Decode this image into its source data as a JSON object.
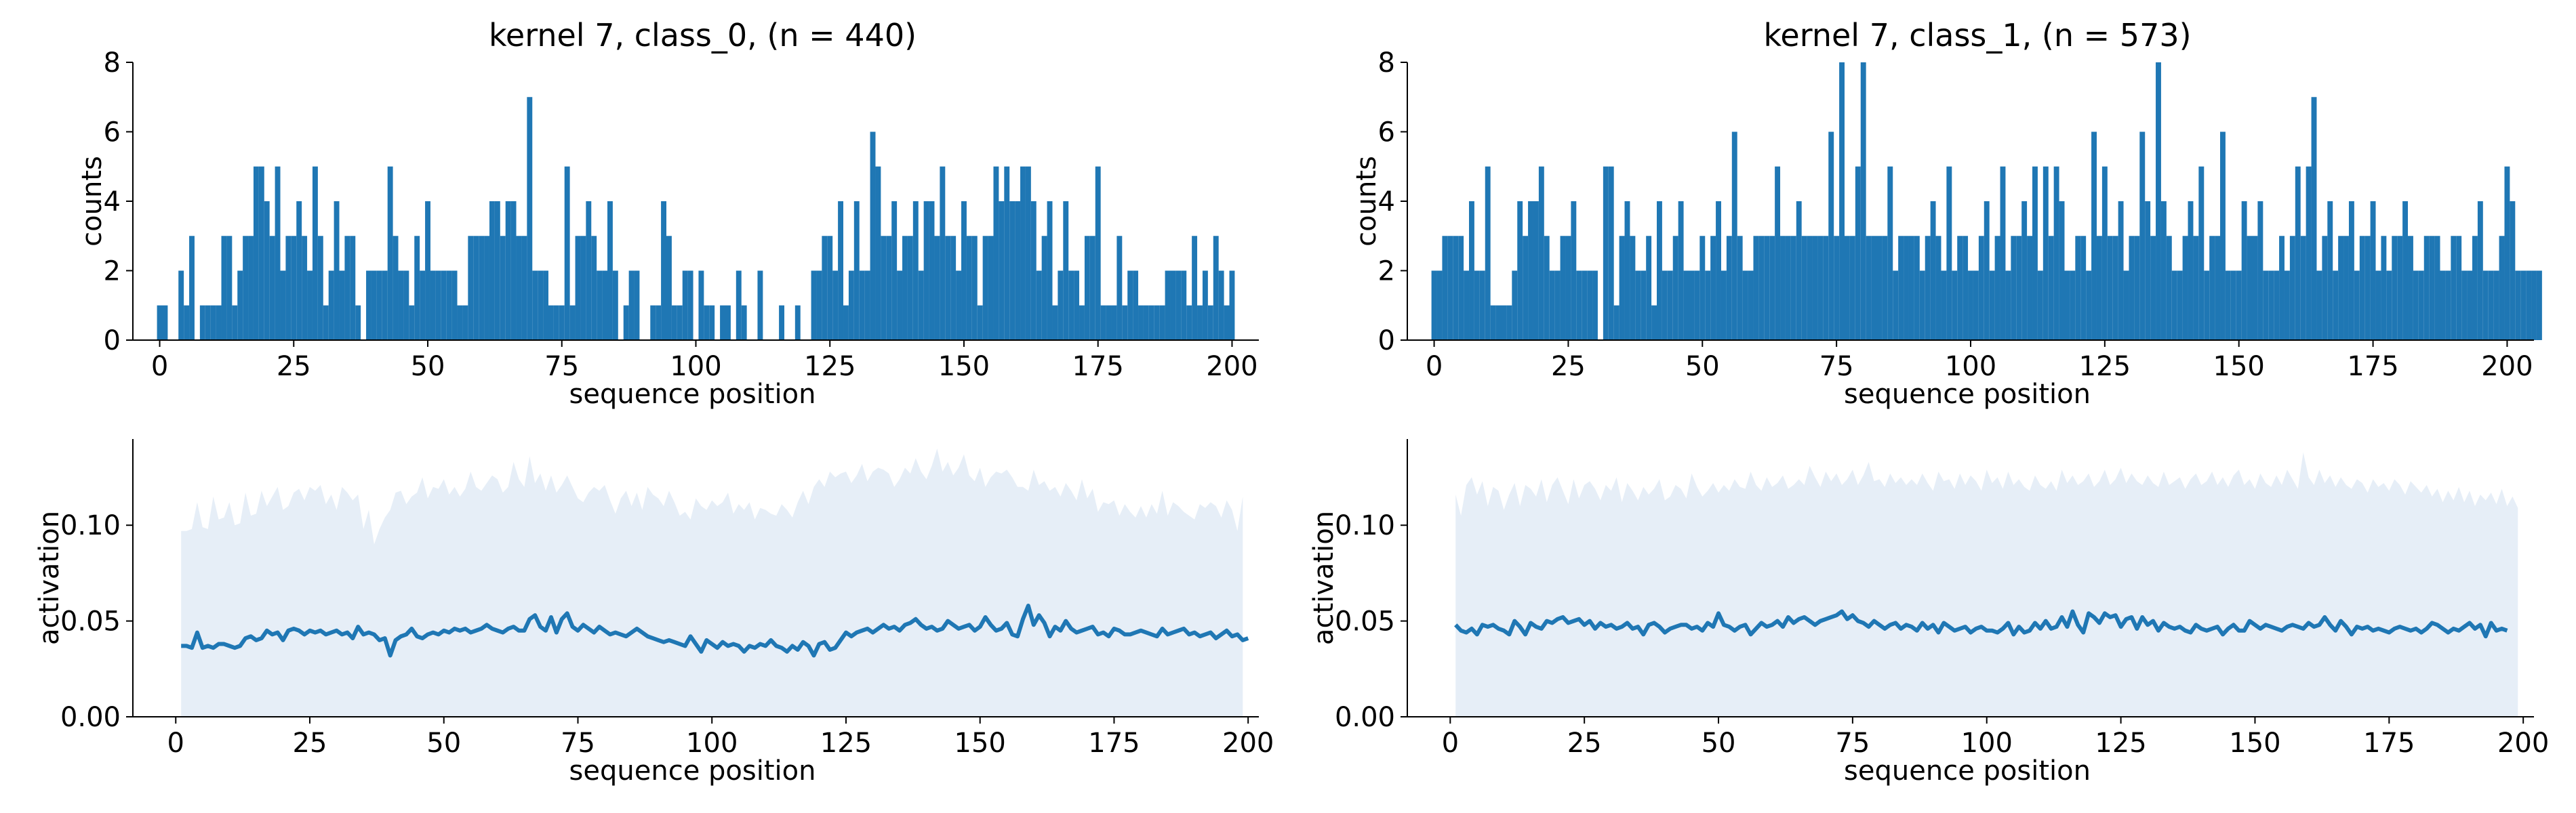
{
  "colors": {
    "bar": "#1f77b4",
    "line": "#1f77b4",
    "band": "#e6eef7",
    "axis": "#000000"
  },
  "chart_data": [
    {
      "type": "bar",
      "title": "kernel 7, class_0, (n = 440)",
      "xlabel": "sequence position",
      "ylabel": "counts",
      "xlim": [
        -5,
        205
      ],
      "ylim": [
        0,
        8
      ],
      "xticks": [
        0,
        25,
        50,
        75,
        100,
        125,
        150,
        175,
        200
      ],
      "yticks": [
        0,
        2,
        4,
        6,
        8
      ],
      "x_start": 0,
      "values": [
        1,
        1,
        0,
        0,
        2,
        1,
        3,
        0,
        1,
        1,
        1,
        1,
        3,
        3,
        1,
        2,
        3,
        3,
        5,
        5,
        4,
        3,
        5,
        2,
        3,
        3,
        4,
        3,
        2,
        5,
        3,
        1,
        2,
        4,
        2,
        3,
        3,
        1,
        0,
        2,
        2,
        2,
        2,
        5,
        3,
        2,
        2,
        1,
        3,
        2,
        4,
        2,
        2,
        2,
        2,
        2,
        1,
        1,
        3,
        3,
        3,
        3,
        4,
        4,
        3,
        4,
        4,
        3,
        3,
        7,
        2,
        2,
        2,
        1,
        1,
        1,
        5,
        1,
        3,
        3,
        4,
        3,
        2,
        2,
        4,
        2,
        0,
        1,
        2,
        2,
        0,
        0,
        1,
        1,
        4,
        3,
        1,
        1,
        2,
        2,
        0,
        2,
        1,
        1,
        0,
        1,
        1,
        0,
        2,
        1,
        0,
        0,
        2,
        0,
        0,
        0,
        1,
        0,
        0,
        1,
        0,
        0,
        2,
        2,
        3,
        3,
        2,
        4,
        1,
        2,
        4,
        2,
        2,
        6,
        5,
        3,
        3,
        4,
        2,
        3,
        3,
        4,
        2,
        4,
        4,
        3,
        5,
        3,
        3,
        2,
        4,
        3,
        3,
        1,
        3,
        3,
        5,
        4,
        5,
        4,
        4,
        5,
        5,
        4,
        2,
        3,
        4,
        1,
        2,
        4,
        2,
        2,
        1,
        3,
        3,
        5,
        1,
        1,
        1,
        3,
        1,
        2,
        2,
        1,
        1,
        1,
        1,
        1,
        2,
        2,
        2,
        2,
        1,
        3,
        1,
        2,
        1,
        3,
        2,
        1,
        2
      ]
    },
    {
      "type": "bar",
      "title": "kernel 7, class_1, (n = 573)",
      "xlabel": "sequence position",
      "ylabel": "counts",
      "xlim": [
        -5,
        205
      ],
      "ylim": [
        0,
        8
      ],
      "xticks": [
        0,
        25,
        50,
        75,
        100,
        125,
        150,
        175,
        200
      ],
      "yticks": [
        0,
        2,
        4,
        6,
        8
      ],
      "x_start": 0,
      "values": [
        2,
        2,
        3,
        3,
        3,
        3,
        2,
        4,
        2,
        2,
        5,
        1,
        1,
        1,
        1,
        2,
        4,
        3,
        4,
        4,
        5,
        3,
        2,
        2,
        3,
        3,
        4,
        2,
        2,
        2,
        2,
        0,
        5,
        5,
        1,
        3,
        4,
        3,
        2,
        2,
        3,
        1,
        4,
        2,
        2,
        3,
        4,
        2,
        2,
        2,
        3,
        2,
        3,
        4,
        2,
        3,
        6,
        3,
        2,
        2,
        3,
        3,
        3,
        3,
        5,
        3,
        3,
        3,
        4,
        3,
        3,
        3,
        3,
        3,
        6,
        3,
        8,
        3,
        3,
        5,
        8,
        3,
        3,
        3,
        3,
        5,
        2,
        3,
        3,
        3,
        3,
        2,
        3,
        4,
        3,
        2,
        5,
        2,
        3,
        3,
        2,
        2,
        3,
        4,
        2,
        3,
        5,
        2,
        3,
        3,
        4,
        3,
        5,
        2,
        5,
        3,
        5,
        4,
        2,
        2,
        3,
        3,
        2,
        6,
        3,
        5,
        3,
        3,
        4,
        2,
        3,
        3,
        6,
        4,
        3,
        8,
        4,
        3,
        2,
        2,
        3,
        4,
        3,
        5,
        2,
        3,
        3,
        6,
        2,
        2,
        2,
        4,
        3,
        3,
        4,
        2,
        2,
        2,
        3,
        2,
        3,
        5,
        3,
        5,
        7,
        2,
        3,
        4,
        2,
        3,
        3,
        4,
        2,
        3,
        3,
        4,
        2,
        3,
        2,
        3,
        3,
        4,
        3,
        2,
        2,
        3,
        3,
        3,
        2,
        2,
        3,
        3,
        2,
        2,
        3,
        4,
        2,
        2,
        2,
        3,
        5,
        4,
        2,
        2,
        2,
        2,
        2
      ]
    },
    {
      "type": "line",
      "xlabel": "sequence position",
      "ylabel": "activation",
      "xlim": [
        -8,
        202
      ],
      "ylim": [
        0,
        0.145
      ],
      "xticks": [
        0,
        25,
        50,
        75,
        100,
        125,
        150,
        175,
        200
      ],
      "xtick_labels": [
        "0",
        "25",
        "50",
        "75",
        "100",
        "125",
        "150",
        "175",
        "200"
      ],
      "yticks": [
        0,
        0.05,
        0.1
      ],
      "ytick_labels": [
        "0.00",
        "0.05",
        "0.10"
      ],
      "x_start": 1,
      "values": [
        0.037,
        0.037,
        0.036,
        0.044,
        0.036,
        0.037,
        0.036,
        0.038,
        0.038,
        0.037,
        0.036,
        0.037,
        0.041,
        0.042,
        0.04,
        0.041,
        0.045,
        0.043,
        0.044,
        0.04,
        0.045,
        0.046,
        0.045,
        0.043,
        0.045,
        0.044,
        0.045,
        0.043,
        0.044,
        0.045,
        0.043,
        0.044,
        0.041,
        0.047,
        0.043,
        0.044,
        0.043,
        0.04,
        0.041,
        0.032,
        0.04,
        0.042,
        0.043,
        0.046,
        0.042,
        0.041,
        0.043,
        0.044,
        0.043,
        0.045,
        0.044,
        0.046,
        0.045,
        0.046,
        0.044,
        0.045,
        0.046,
        0.048,
        0.046,
        0.045,
        0.044,
        0.046,
        0.047,
        0.045,
        0.045,
        0.051,
        0.053,
        0.047,
        0.045,
        0.052,
        0.044,
        0.051,
        0.054,
        0.047,
        0.045,
        0.048,
        0.046,
        0.044,
        0.047,
        0.045,
        0.043,
        0.044,
        0.043,
        0.042,
        0.044,
        0.046,
        0.044,
        0.042,
        0.041,
        0.04,
        0.039,
        0.04,
        0.039,
        0.038,
        0.037,
        0.042,
        0.038,
        0.034,
        0.04,
        0.038,
        0.036,
        0.039,
        0.037,
        0.038,
        0.037,
        0.034,
        0.037,
        0.036,
        0.038,
        0.037,
        0.04,
        0.037,
        0.036,
        0.034,
        0.037,
        0.035,
        0.039,
        0.037,
        0.032,
        0.038,
        0.039,
        0.035,
        0.036,
        0.04,
        0.044,
        0.042,
        0.044,
        0.045,
        0.046,
        0.044,
        0.046,
        0.048,
        0.046,
        0.047,
        0.045,
        0.048,
        0.049,
        0.051,
        0.048,
        0.046,
        0.047,
        0.045,
        0.046,
        0.05,
        0.048,
        0.046,
        0.047,
        0.048,
        0.045,
        0.047,
        0.052,
        0.048,
        0.045,
        0.046,
        0.049,
        0.043,
        0.042,
        0.051,
        0.058,
        0.048,
        0.053,
        0.049,
        0.042,
        0.047,
        0.045,
        0.05,
        0.046,
        0.044,
        0.045,
        0.046,
        0.047,
        0.043,
        0.044,
        0.042,
        0.046,
        0.045,
        0.043,
        0.043,
        0.044,
        0.045,
        0.044,
        0.043,
        0.042,
        0.046,
        0.043,
        0.044,
        0.045,
        0.046,
        0.043,
        0.044,
        0.042,
        0.043,
        0.044,
        0.041,
        0.043,
        0.045,
        0.042,
        0.043,
        0.04,
        0.041
      ],
      "band_upper": [
        0.097,
        0.097,
        0.098,
        0.112,
        0.099,
        0.098,
        0.115,
        0.103,
        0.104,
        0.112,
        0.1,
        0.101,
        0.117,
        0.105,
        0.106,
        0.118,
        0.11,
        0.115,
        0.12,
        0.108,
        0.11,
        0.117,
        0.119,
        0.113,
        0.12,
        0.118,
        0.121,
        0.111,
        0.116,
        0.108,
        0.12,
        0.117,
        0.113,
        0.116,
        0.098,
        0.108,
        0.09,
        0.098,
        0.104,
        0.108,
        0.117,
        0.118,
        0.111,
        0.115,
        0.117,
        0.125,
        0.114,
        0.12,
        0.119,
        0.124,
        0.116,
        0.12,
        0.115,
        0.119,
        0.128,
        0.12,
        0.118,
        0.122,
        0.126,
        0.124,
        0.117,
        0.12,
        0.133,
        0.124,
        0.12,
        0.136,
        0.122,
        0.127,
        0.118,
        0.126,
        0.117,
        0.121,
        0.126,
        0.12,
        0.114,
        0.112,
        0.117,
        0.12,
        0.118,
        0.121,
        0.113,
        0.106,
        0.114,
        0.118,
        0.11,
        0.117,
        0.108,
        0.12,
        0.116,
        0.114,
        0.11,
        0.118,
        0.112,
        0.105,
        0.107,
        0.103,
        0.114,
        0.11,
        0.108,
        0.113,
        0.11,
        0.112,
        0.117,
        0.106,
        0.111,
        0.108,
        0.112,
        0.103,
        0.109,
        0.108,
        0.106,
        0.105,
        0.111,
        0.108,
        0.104,
        0.112,
        0.118,
        0.111,
        0.12,
        0.124,
        0.12,
        0.128,
        0.125,
        0.127,
        0.128,
        0.122,
        0.126,
        0.132,
        0.123,
        0.128,
        0.13,
        0.129,
        0.127,
        0.12,
        0.124,
        0.13,
        0.127,
        0.135,
        0.128,
        0.124,
        0.131,
        0.14,
        0.128,
        0.133,
        0.126,
        0.13,
        0.137,
        0.126,
        0.123,
        0.13,
        0.12,
        0.125,
        0.128,
        0.127,
        0.129,
        0.125,
        0.12,
        0.12,
        0.118,
        0.129,
        0.121,
        0.123,
        0.118,
        0.12,
        0.115,
        0.122,
        0.118,
        0.113,
        0.124,
        0.114,
        0.119,
        0.107,
        0.112,
        0.111,
        0.113,
        0.105,
        0.111,
        0.107,
        0.104,
        0.11,
        0.104,
        0.111,
        0.106,
        0.118,
        0.105,
        0.112,
        0.11,
        0.107,
        0.105,
        0.103,
        0.111,
        0.109,
        0.112,
        0.11,
        0.104,
        0.113,
        0.108,
        0.097,
        0.115
      ]
    },
    {
      "type": "line",
      "xlabel": "sequence position",
      "ylabel": "activation",
      "xlim": [
        -8,
        202
      ],
      "ylim": [
        0,
        0.145
      ],
      "xticks": [
        0,
        25,
        50,
        75,
        100,
        125,
        150,
        175,
        200
      ],
      "xtick_labels": [
        "0",
        "25",
        "50",
        "75",
        "100",
        "125",
        "150",
        "175",
        "200"
      ],
      "yticks": [
        0,
        0.05,
        0.1
      ],
      "ytick_labels": [
        "0.00",
        "0.05",
        "0.10"
      ],
      "x_start": 1,
      "values": [
        0.048,
        0.045,
        0.044,
        0.046,
        0.043,
        0.048,
        0.047,
        0.048,
        0.046,
        0.045,
        0.043,
        0.05,
        0.047,
        0.043,
        0.049,
        0.047,
        0.046,
        0.05,
        0.049,
        0.051,
        0.052,
        0.049,
        0.05,
        0.051,
        0.048,
        0.05,
        0.046,
        0.049,
        0.047,
        0.048,
        0.046,
        0.047,
        0.049,
        0.046,
        0.047,
        0.043,
        0.048,
        0.049,
        0.047,
        0.044,
        0.046,
        0.047,
        0.048,
        0.048,
        0.046,
        0.047,
        0.045,
        0.049,
        0.047,
        0.054,
        0.048,
        0.047,
        0.045,
        0.047,
        0.048,
        0.043,
        0.046,
        0.049,
        0.047,
        0.048,
        0.05,
        0.047,
        0.052,
        0.049,
        0.051,
        0.052,
        0.05,
        0.048,
        0.05,
        0.051,
        0.052,
        0.053,
        0.055,
        0.051,
        0.053,
        0.05,
        0.049,
        0.047,
        0.05,
        0.048,
        0.046,
        0.048,
        0.049,
        0.046,
        0.048,
        0.047,
        0.045,
        0.049,
        0.046,
        0.048,
        0.044,
        0.049,
        0.047,
        0.045,
        0.046,
        0.047,
        0.044,
        0.046,
        0.047,
        0.045,
        0.045,
        0.044,
        0.046,
        0.049,
        0.043,
        0.047,
        0.044,
        0.045,
        0.049,
        0.046,
        0.05,
        0.046,
        0.047,
        0.052,
        0.047,
        0.055,
        0.048,
        0.044,
        0.054,
        0.052,
        0.049,
        0.054,
        0.052,
        0.053,
        0.047,
        0.051,
        0.052,
        0.046,
        0.052,
        0.048,
        0.05,
        0.045,
        0.049,
        0.047,
        0.046,
        0.047,
        0.045,
        0.044,
        0.048,
        0.046,
        0.045,
        0.046,
        0.047,
        0.043,
        0.046,
        0.048,
        0.045,
        0.045,
        0.05,
        0.048,
        0.046,
        0.048,
        0.047,
        0.046,
        0.045,
        0.047,
        0.048,
        0.047,
        0.046,
        0.049,
        0.047,
        0.048,
        0.052,
        0.048,
        0.045,
        0.05,
        0.047,
        0.043,
        0.047,
        0.046,
        0.047,
        0.045,
        0.046,
        0.045,
        0.044,
        0.046,
        0.047,
        0.046,
        0.045,
        0.046,
        0.044,
        0.046,
        0.049,
        0.048,
        0.046,
        0.044,
        0.046,
        0.045,
        0.047,
        0.049,
        0.046,
        0.048,
        0.042,
        0.049,
        0.045,
        0.046,
        0.045
      ],
      "band_upper": [
        0.116,
        0.105,
        0.121,
        0.125,
        0.116,
        0.123,
        0.11,
        0.12,
        0.118,
        0.108,
        0.116,
        0.122,
        0.11,
        0.121,
        0.119,
        0.115,
        0.124,
        0.112,
        0.121,
        0.125,
        0.118,
        0.111,
        0.124,
        0.114,
        0.121,
        0.123,
        0.119,
        0.113,
        0.121,
        0.118,
        0.125,
        0.112,
        0.122,
        0.118,
        0.113,
        0.12,
        0.116,
        0.119,
        0.124,
        0.113,
        0.115,
        0.121,
        0.119,
        0.114,
        0.127,
        0.12,
        0.115,
        0.118,
        0.122,
        0.117,
        0.121,
        0.118,
        0.124,
        0.12,
        0.119,
        0.128,
        0.121,
        0.118,
        0.125,
        0.12,
        0.122,
        0.126,
        0.119,
        0.121,
        0.124,
        0.121,
        0.131,
        0.125,
        0.12,
        0.128,
        0.123,
        0.127,
        0.121,
        0.124,
        0.129,
        0.121,
        0.126,
        0.133,
        0.123,
        0.124,
        0.12,
        0.127,
        0.122,
        0.125,
        0.121,
        0.124,
        0.121,
        0.127,
        0.122,
        0.118,
        0.128,
        0.123,
        0.124,
        0.119,
        0.127,
        0.121,
        0.126,
        0.123,
        0.118,
        0.129,
        0.122,
        0.125,
        0.119,
        0.128,
        0.121,
        0.124,
        0.12,
        0.118,
        0.126,
        0.121,
        0.119,
        0.123,
        0.118,
        0.129,
        0.122,
        0.126,
        0.121,
        0.123,
        0.127,
        0.12,
        0.123,
        0.129,
        0.121,
        0.124,
        0.13,
        0.122,
        0.127,
        0.123,
        0.121,
        0.126,
        0.122,
        0.12,
        0.128,
        0.121,
        0.123,
        0.125,
        0.119,
        0.124,
        0.127,
        0.121,
        0.123,
        0.128,
        0.121,
        0.125,
        0.12,
        0.126,
        0.129,
        0.121,
        0.124,
        0.119,
        0.127,
        0.122,
        0.12,
        0.126,
        0.121,
        0.129,
        0.124,
        0.119,
        0.138,
        0.125,
        0.121,
        0.129,
        0.122,
        0.126,
        0.12,
        0.125,
        0.121,
        0.119,
        0.124,
        0.122,
        0.117,
        0.124,
        0.12,
        0.122,
        0.118,
        0.124,
        0.121,
        0.116,
        0.123,
        0.12,
        0.117,
        0.121,
        0.115,
        0.119,
        0.112,
        0.118,
        0.113,
        0.12,
        0.112,
        0.118,
        0.11,
        0.116,
        0.113,
        0.117,
        0.111,
        0.119,
        0.11,
        0.115,
        0.109
      ]
    }
  ]
}
